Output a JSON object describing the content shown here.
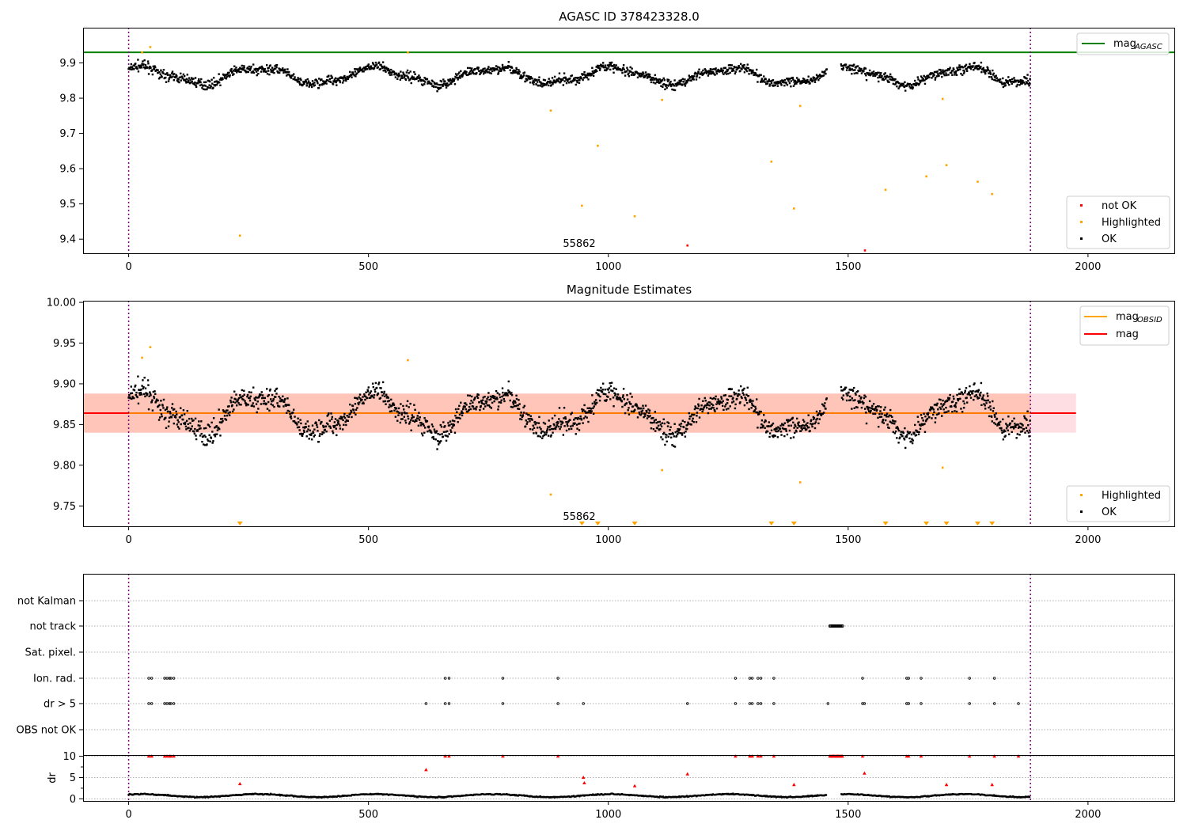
{
  "chart_data": [
    {
      "type": "scatter",
      "title": "AGASC ID 378423328.0",
      "xlabel": "",
      "ylabel": "",
      "xlim": [
        -95,
        2180
      ],
      "ylim": [
        9.36,
        10.0
      ],
      "xticks": [
        0,
        500,
        1000,
        1500,
        2000
      ],
      "yticks": [
        9.4,
        9.5,
        9.6,
        9.7,
        9.8,
        9.9
      ],
      "annotation": "55862",
      "annotation_x": 940,
      "annotation_y": 9.38,
      "vlines": [
        0,
        1880
      ],
      "mag_agasc": 9.93,
      "legend_lines": [
        {
          "label": "mag",
          "sub": "AGASC",
          "color": "#008000"
        }
      ],
      "legend_points": [
        {
          "label": "not OK",
          "color": "#ff0000"
        },
        {
          "label": "Highlighted",
          "color": "#ffa500"
        },
        {
          "label": "OK",
          "color": "#000000"
        }
      ],
      "highlighted": [
        [
          28,
          9.93
        ],
        [
          45,
          9.945
        ],
        [
          232,
          9.41
        ],
        [
          582,
          9.93
        ],
        [
          880,
          9.765
        ],
        [
          945,
          9.495
        ],
        [
          978,
          9.665
        ],
        [
          1055,
          9.465
        ],
        [
          1112,
          9.795
        ],
        [
          1340,
          9.62
        ],
        [
          1387,
          9.487
        ],
        [
          1400,
          9.778
        ],
        [
          1578,
          9.54
        ],
        [
          1663,
          9.578
        ],
        [
          1697,
          9.798
        ],
        [
          1705,
          9.61
        ],
        [
          1770,
          9.563
        ],
        [
          1800,
          9.528
        ]
      ],
      "not_ok": [
        [
          1165,
          9.382
        ],
        [
          1535,
          9.368
        ]
      ]
    },
    {
      "type": "scatter",
      "title": "Magnitude Estimates",
      "xlabel": "",
      "ylabel": "",
      "xlim": [
        -95,
        2180
      ],
      "ylim": [
        9.725,
        10.002
      ],
      "xticks": [
        0,
        500,
        1000,
        1500,
        2000
      ],
      "yticks": [
        9.75,
        9.8,
        9.85,
        9.9,
        9.95,
        10.0
      ],
      "annotation": "55862",
      "annotation_x": 940,
      "annotation_y": 9.733,
      "vlines": [
        0,
        1880
      ],
      "mag": 9.864,
      "mag_obsid": 9.864,
      "band": [
        9.84,
        9.888
      ],
      "band_x": [
        -95,
        1975
      ],
      "legend_lines": [
        {
          "label": "mag",
          "sub": "OBSID",
          "color": "#ffa500"
        },
        {
          "label": "mag",
          "sub": "",
          "color": "#ff0000"
        }
      ],
      "legend_points": [
        {
          "label": "Highlighted",
          "color": "#ffa500"
        },
        {
          "label": "OK",
          "color": "#000000"
        }
      ],
      "highlighted": [
        [
          28,
          9.932
        ],
        [
          45,
          9.945
        ],
        [
          582,
          9.929
        ],
        [
          880,
          9.764
        ],
        [
          1112,
          9.794
        ],
        [
          1400,
          9.779
        ],
        [
          1697,
          9.797
        ]
      ],
      "markers_below": [
        232,
        945,
        978,
        1055,
        1340,
        1387,
        1578,
        1663,
        1705,
        1770,
        1800
      ]
    },
    {
      "type": "scatter",
      "title": "",
      "xlabel": "",
      "ylabel": "",
      "xlim": [
        -95,
        2180
      ],
      "xticks": [
        0,
        500,
        1000,
        1500,
        2000
      ],
      "vlines": [
        0,
        1880
      ],
      "flag_rows": [
        "not Kalman",
        "not track",
        "Sat. pixel.",
        "Ion. rad.",
        "dr > 5",
        "OBS not OK"
      ],
      "not_track": [
        1462,
        1488
      ],
      "ion_rad": [
        42,
        48,
        75,
        80,
        85,
        88,
        94,
        660,
        668,
        780,
        895,
        1265,
        1295,
        1300,
        1312,
        1318,
        1345,
        1530,
        1622,
        1626,
        1652,
        1753,
        1805
      ],
      "dr_gt5": [
        42,
        48,
        75,
        80,
        85,
        88,
        94,
        620,
        660,
        668,
        780,
        895,
        948,
        1165,
        1265,
        1295,
        1300,
        1312,
        1318,
        1345,
        1458,
        1530,
        1534,
        1622,
        1626,
        1652,
        1753,
        1805,
        1855
      ],
      "dr_ylabel": "dr",
      "dr_yticks": [
        0,
        5,
        10
      ],
      "dr_ylim": [
        -0.5,
        10.3
      ],
      "dr_red": [
        [
          42,
          10
        ],
        [
          48,
          10
        ],
        [
          75,
          10
        ],
        [
          80,
          10
        ],
        [
          85,
          10
        ],
        [
          88,
          10
        ],
        [
          94,
          10
        ],
        [
          232,
          3.5
        ],
        [
          620,
          6.8
        ],
        [
          660,
          10
        ],
        [
          668,
          10
        ],
        [
          780,
          10
        ],
        [
          895,
          10
        ],
        [
          948,
          5
        ],
        [
          950,
          3.7
        ],
        [
          1055,
          3
        ],
        [
          1165,
          5.8
        ],
        [
          1265,
          10
        ],
        [
          1295,
          10
        ],
        [
          1300,
          10
        ],
        [
          1312,
          10
        ],
        [
          1318,
          10
        ],
        [
          1345,
          10
        ],
        [
          1387,
          3.3
        ],
        [
          1530,
          10
        ],
        [
          1534,
          6
        ],
        [
          1622,
          10
        ],
        [
          1626,
          10
        ],
        [
          1652,
          10
        ],
        [
          1705,
          3.3
        ],
        [
          1753,
          10
        ],
        [
          1800,
          3.3
        ],
        [
          1805,
          10
        ],
        [
          1855,
          10
        ]
      ]
    }
  ]
}
